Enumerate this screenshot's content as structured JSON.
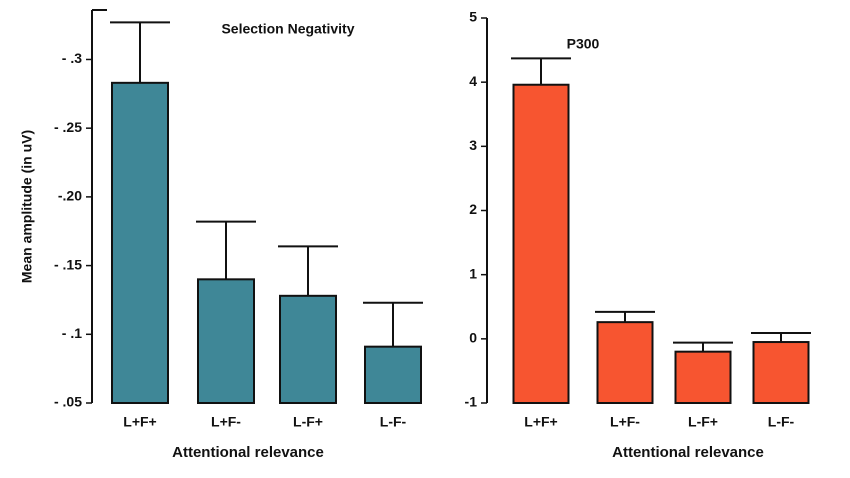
{
  "chart_data": [
    {
      "type": "bar",
      "title": "Selection Negativity",
      "y_label": "Mean amplitude (in uV)",
      "x_label": "Attentional relevance",
      "categories": [
        "L+F+",
        "L+F-",
        "L-F+",
        "L-F-"
      ],
      "values": [
        -0.283,
        -0.14,
        -0.128,
        -0.091
      ],
      "errors": [
        0.044,
        0.042,
        0.036,
        0.032
      ],
      "color": "#3f8797",
      "ylim": [
        -0.05,
        -0.336
      ],
      "yticks": [
        {
          "value": -0.05,
          "label": "- .05"
        },
        {
          "value": -0.1,
          "label": "- .1"
        },
        {
          "value": -0.15,
          "label": "- .15"
        },
        {
          "value": -0.2,
          "label": "-.20"
        },
        {
          "value": -0.25,
          "label": "- .25"
        },
        {
          "value": -0.3,
          "label": "- .3"
        }
      ]
    },
    {
      "type": "bar",
      "title": "P300",
      "x_label": "Attentional relevance",
      "categories": [
        "L+F+",
        "L+F-",
        "L-F+",
        "L-F-"
      ],
      "values": [
        3.96,
        0.26,
        -0.2,
        -0.05
      ],
      "errors": [
        0.41,
        0.16,
        0.14,
        0.14
      ],
      "color": "#f75530",
      "ylim": [
        -1,
        5
      ],
      "yticks": [
        -1,
        0,
        1,
        2,
        3,
        4,
        5
      ]
    }
  ]
}
